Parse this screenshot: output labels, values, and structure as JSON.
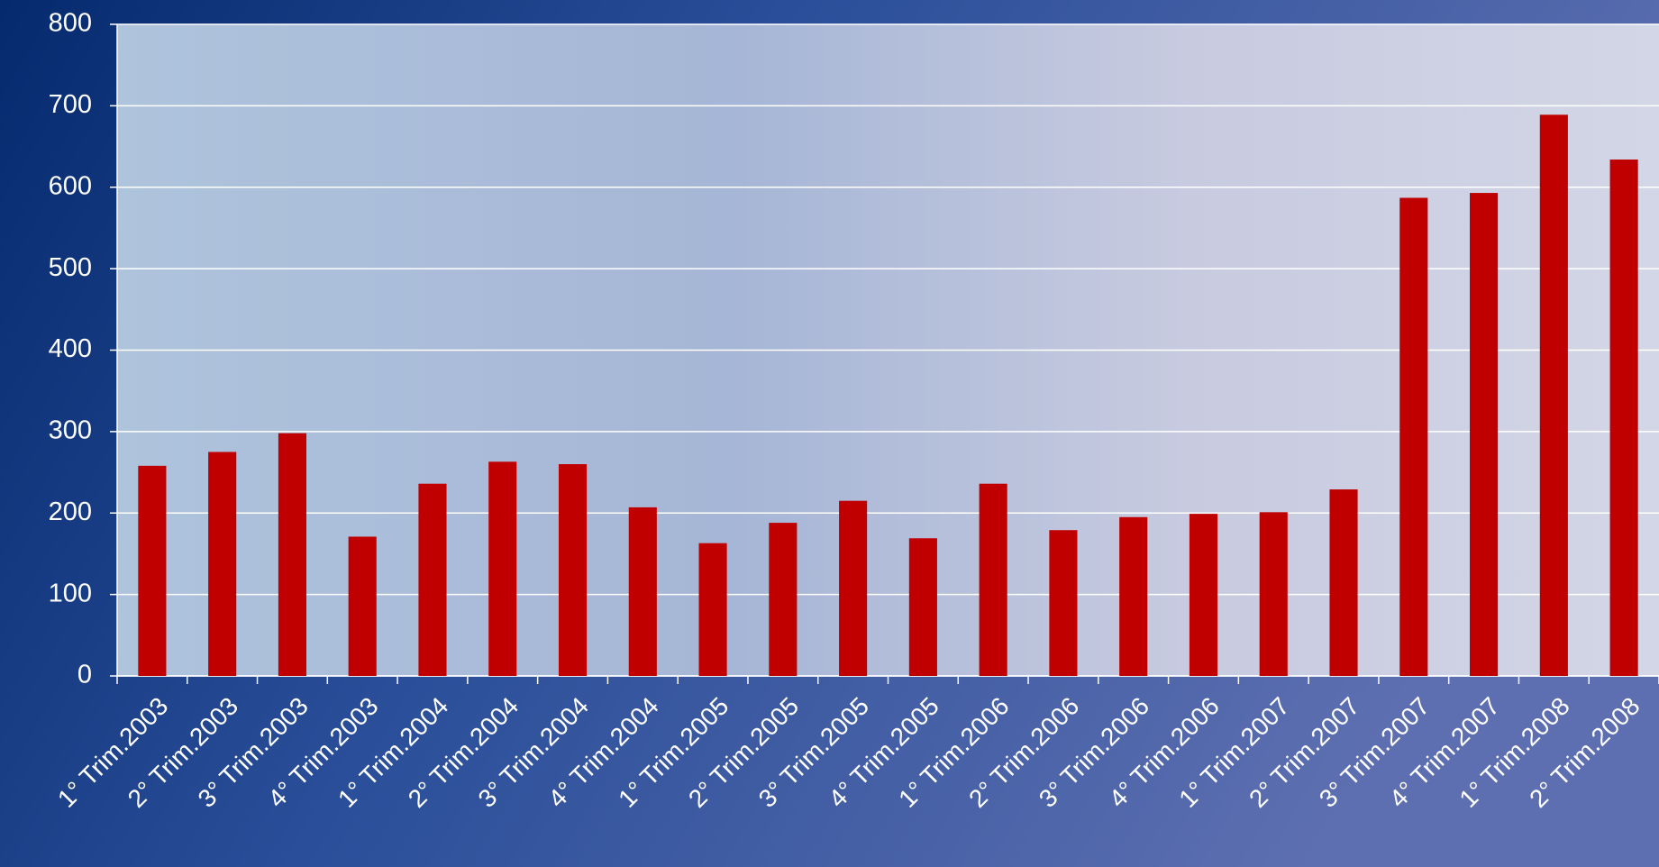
{
  "chart_data": {
    "type": "bar",
    "categories": [
      "1° Trim.2003",
      "2° Trim.2003",
      "3° Trim.2003",
      "4° Trim.2003",
      "1° Trim.2004",
      "2° Trim.2004",
      "3° Trim.2004",
      "4° Trim.2004",
      "1° Trim.2005",
      "2° Trim.2005",
      "3° Trim.2005",
      "4° Trim.2005",
      "1° Trim.2006",
      "2° Trim.2006",
      "3° Trim.2006",
      "4° Trim.2006",
      "1° Trim.2007",
      "2° Trim.2007",
      "3° Trim.2007",
      "4° Trim.2007",
      "1° Trim.2008",
      "2° Trim.2008"
    ],
    "values": [
      258,
      275,
      298,
      171,
      236,
      263,
      260,
      207,
      163,
      188,
      215,
      169,
      236,
      179,
      195,
      199,
      201,
      229,
      587,
      593,
      689,
      634
    ],
    "color": "#c00000",
    "ylim": [
      0,
      800
    ],
    "yticks": [
      0,
      100,
      200,
      300,
      400,
      500,
      600,
      700,
      800
    ],
    "grid": true
  }
}
